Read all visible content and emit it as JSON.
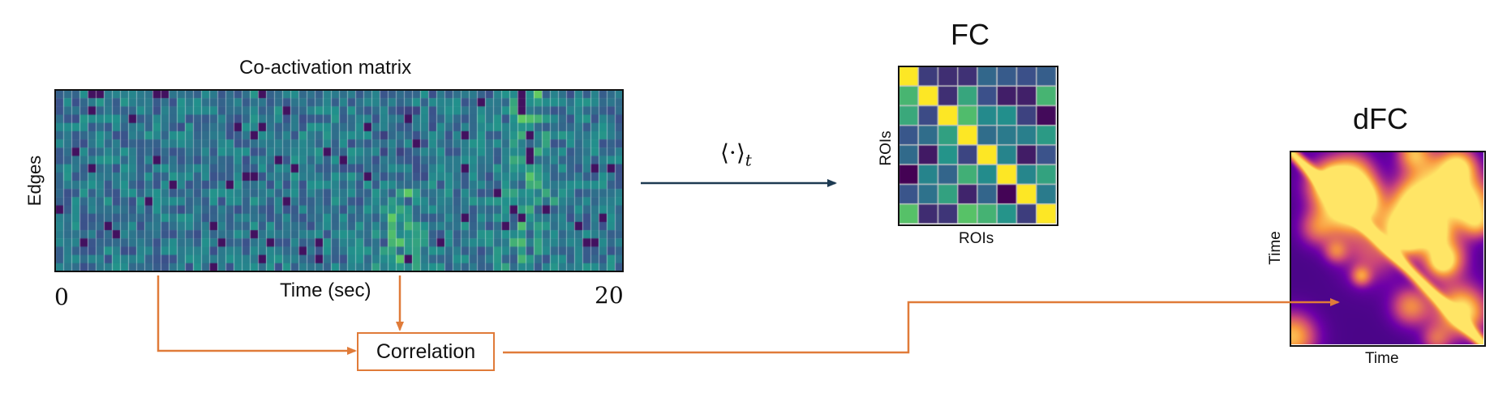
{
  "coactivation": {
    "title": "Co-activation matrix",
    "ylabel": "Edges",
    "xlabel": "Time (sec)",
    "xmin_label": "0",
    "xmax_label": "20"
  },
  "fc": {
    "title": "FC",
    "ylabel": "ROIs",
    "xlabel": "ROIs"
  },
  "dfc": {
    "title": "dFC",
    "ylabel": "Time",
    "xlabel": "Time"
  },
  "operator": {
    "label": "⟨·⟩",
    "subscript": "t"
  },
  "correlation_box": {
    "label": "Correlation"
  },
  "colors": {
    "arrow_main": "#1d3a52",
    "arrow_orange": "#e07b39",
    "viridis_low": "#440154",
    "viridis_high": "#fde725",
    "plasma_low": "#2a0a6b",
    "plasma_high": "#ffe566"
  }
}
